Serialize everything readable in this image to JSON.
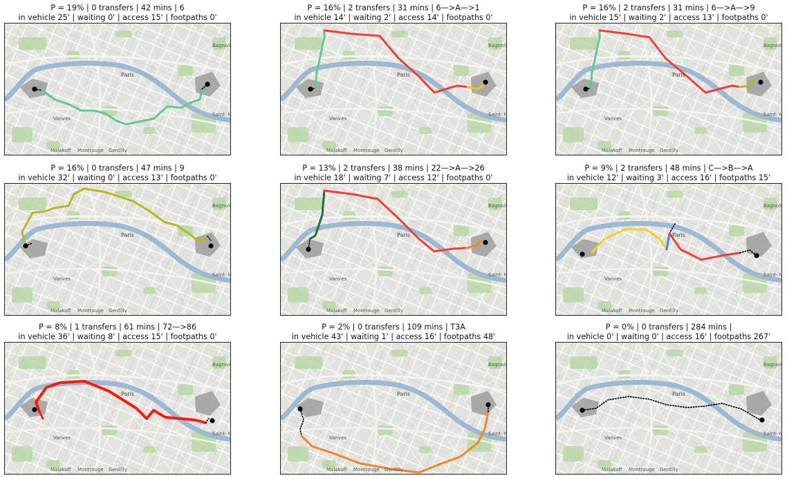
{
  "map_labels": {
    "paris": "Paris",
    "vanves": "Vanves",
    "bagnolet": "Bagnolet",
    "saint_mande": "Saint-\nMandé",
    "malakoff": "Malakoff",
    "montrouge": "Montrouge",
    "gentilly": "Gentilly"
  },
  "colors": {
    "green": "#5fc98f",
    "red": "#ee4035",
    "yellow_orange": "#f0c419",
    "olive": "#b9b81e",
    "dark_green": "#1b6e3c",
    "orange": "#f5832a",
    "blue": "#4a7fd4",
    "yellow": "#f3d21c",
    "bright_red": "#ff1a0a",
    "black": "#000000"
  },
  "panels": [
    {
      "line1": "P = 19% | 0 transfers  | 42 mins | 6",
      "line2": "in vehicle 25' |  waiting 0' | access 15' |  footpaths 0'",
      "segments": [
        {
          "type": "dotted",
          "points": [
            [
              43,
              95
            ],
            [
              54,
              97
            ]
          ]
        },
        {
          "type": "line",
          "color": "green",
          "width": 3,
          "points": [
            [
              54,
              97
            ],
            [
              72,
              110
            ],
            [
              95,
              118
            ],
            [
              110,
              126
            ],
            [
              128,
              126
            ],
            [
              145,
              130
            ],
            [
              160,
              140
            ],
            [
              175,
              146
            ],
            [
              195,
              142
            ],
            [
              215,
              138
            ],
            [
              235,
              120
            ],
            [
              255,
              122
            ],
            [
              270,
              114
            ],
            [
              282,
              110
            ],
            [
              285,
              95
            ]
          ]
        },
        {
          "type": "dotted",
          "points": [
            [
              285,
              95
            ],
            [
              293,
              88
            ]
          ]
        }
      ],
      "origin": [
        43,
        95
      ],
      "dest": [
        293,
        88
      ]
    },
    {
      "line1": "P = 16% | 2 transfers  | 31 mins | 6—>A—>1",
      "line2": "in vehicle 14' |  waiting 2' | access 14' |  footpaths 0'",
      "segments": [
        {
          "type": "dotted",
          "points": [
            [
              43,
              95
            ],
            [
              50,
              94
            ]
          ]
        },
        {
          "type": "line",
          "color": "green",
          "width": 3,
          "points": [
            [
              50,
              94
            ],
            [
              52,
              70
            ],
            [
              57,
              48
            ],
            [
              63,
              20
            ],
            [
              63,
              10
            ]
          ]
        },
        {
          "type": "line",
          "color": "red",
          "width": 3,
          "points": [
            [
              63,
              10
            ],
            [
              103,
              15
            ],
            [
              143,
              18
            ],
            [
              170,
              50
            ],
            [
              200,
              77
            ],
            [
              222,
              100
            ],
            [
              255,
              90
            ],
            [
              270,
              92
            ]
          ]
        },
        {
          "type": "line",
          "color": "yellow_orange",
          "width": 3,
          "points": [
            [
              270,
              92
            ],
            [
              285,
              95
            ],
            [
              293,
              89
            ]
          ]
        }
      ],
      "origin": [
        43,
        95
      ],
      "dest": [
        296,
        85
      ]
    },
    {
      "line1": "P = 16% | 2 transfers  | 31 mins | 6—>A—>9",
      "line2": "in vehicle 15' |  waiting 2' | access 13' |  footpaths 0'",
      "segments": [
        {
          "type": "dotted",
          "points": [
            [
              43,
              95
            ],
            [
              50,
              94
            ]
          ]
        },
        {
          "type": "line",
          "color": "green",
          "width": 3,
          "points": [
            [
              50,
              94
            ],
            [
              52,
              70
            ],
            [
              57,
              48
            ],
            [
              63,
              20
            ],
            [
              63,
              10
            ]
          ]
        },
        {
          "type": "line",
          "color": "red",
          "width": 3,
          "points": [
            [
              63,
              10
            ],
            [
              103,
              15
            ],
            [
              135,
              20
            ],
            [
              158,
              50
            ],
            [
              190,
              77
            ],
            [
              216,
              100
            ],
            [
              255,
              90
            ],
            [
              265,
              92
            ]
          ]
        },
        {
          "type": "line",
          "color": "olive",
          "width": 3,
          "points": [
            [
              265,
              92
            ],
            [
              280,
              90
            ],
            [
              290,
              80
            ]
          ]
        }
      ],
      "origin": [
        43,
        95
      ],
      "dest": [
        296,
        85
      ]
    },
    {
      "line1": "P = 16% | 0 transfers  | 47 mins | 9",
      "line2": "in vehicle 32' |  waiting 0' | access 13' |  footpaths 0'",
      "segments": [
        {
          "type": "dotted",
          "points": [
            [
              30,
              90
            ],
            [
              40,
              86
            ]
          ]
        },
        {
          "type": "line",
          "color": "olive",
          "width": 3,
          "points": [
            [
              30,
              90
            ],
            [
              25,
              70
            ],
            [
              40,
              42
            ],
            [
              58,
              40
            ],
            [
              72,
              35
            ],
            [
              92,
              32
            ],
            [
              100,
              15
            ],
            [
              115,
              7
            ],
            [
              145,
              12
            ],
            [
              185,
              25
            ],
            [
              210,
              40
            ],
            [
              230,
              55
            ],
            [
              248,
              60
            ],
            [
              270,
              75
            ],
            [
              278,
              82
            ]
          ]
        },
        {
          "type": "line",
          "color": "olive",
          "width": 3,
          "points": [
            [
              278,
              82
            ],
            [
              288,
              82
            ],
            [
              293,
              76
            ]
          ]
        },
        {
          "type": "dotted",
          "points": [
            [
              293,
              76
            ],
            [
              298,
              82
            ]
          ]
        }
      ],
      "origin": [
        30,
        90
      ],
      "dest": [
        298,
        90
      ]
    },
    {
      "line1": "P = 13% | 2 transfers  | 38 mins | 22—>A—>26",
      "line2": "in vehicle 18' |  waiting 7' | access 12' |  footpaths 0'",
      "segments": [
        {
          "type": "dotted",
          "points": [
            [
              40,
              95
            ],
            [
              42,
              80
            ]
          ]
        },
        {
          "type": "line",
          "color": "dark_green",
          "width": 3,
          "points": [
            [
              42,
              80
            ],
            [
              50,
              75
            ],
            [
              60,
              45
            ],
            [
              63,
              10
            ]
          ]
        },
        {
          "type": "line",
          "color": "red",
          "width": 3,
          "points": [
            [
              63,
              10
            ],
            [
              103,
              15
            ],
            [
              140,
              22
            ],
            [
              170,
              50
            ],
            [
              200,
              80
            ],
            [
              222,
              98
            ],
            [
              250,
              94
            ],
            [
              268,
              93
            ]
          ]
        },
        {
          "type": "line",
          "color": "orange",
          "width": 3,
          "points": [
            [
              268,
              93
            ],
            [
              282,
              90
            ],
            [
              290,
              82
            ]
          ]
        }
      ],
      "origin": [
        40,
        95
      ],
      "dest": [
        296,
        85
      ]
    },
    {
      "line1": "P = 9% | 2 transfers  | 48 mins | C—>B—>A",
      "line2": "in vehicle 12' |  waiting 3' | access 16' |  footpaths 15'",
      "segments": [
        {
          "type": "line",
          "color": "yellow",
          "width": 3,
          "points": [
            [
              52,
              99
            ],
            [
              70,
              80
            ],
            [
              100,
              66
            ],
            [
              130,
              66
            ],
            [
              150,
              80
            ],
            [
              160,
              95
            ]
          ]
        },
        {
          "type": "line",
          "color": "blue",
          "width": 3,
          "points": [
            [
              160,
              95
            ],
            [
              164,
              72
            ]
          ]
        },
        {
          "type": "dotted",
          "points": [
            [
              164,
              72
            ],
            [
              172,
              58
            ]
          ]
        },
        {
          "type": "line",
          "color": "red",
          "width": 3,
          "points": [
            [
              164,
              72
            ],
            [
              180,
              95
            ],
            [
              210,
              110
            ],
            [
              240,
              104
            ],
            [
              266,
              100
            ]
          ]
        },
        {
          "type": "dotted",
          "points": [
            [
              266,
              100
            ],
            [
              280,
              96
            ],
            [
              290,
              104
            ]
          ]
        }
      ],
      "origin": [
        38,
        102
      ],
      "dest": [
        290,
        104
      ]
    },
    {
      "line1": "P = 8% | 1 transfers  | 61 mins | 72—>86",
      "line2": "in vehicle 36' |  waiting 8' | access 15' |  footpaths 0'",
      "segments": [
        {
          "type": "line",
          "color": "bright_red",
          "width": 4,
          "points": [
            [
              50,
              100
            ],
            [
              45,
              86
            ],
            [
              60,
              65
            ],
            [
              80,
              58
            ],
            [
              115,
              56
            ],
            [
              150,
              70
            ],
            [
              190,
              95
            ],
            [
              205,
              110
            ],
            [
              215,
              98
            ],
            [
              232,
              108
            ],
            [
              275,
              112
            ],
            [
              290,
              116
            ]
          ]
        },
        {
          "type": "line",
          "color": "bright_red",
          "width": 3,
          "points": [
            [
              50,
              100
            ],
            [
              55,
              110
            ]
          ]
        },
        {
          "type": "dotted",
          "points": [
            [
              290,
              116
            ],
            [
              295,
              110
            ]
          ]
        }
      ],
      "origin": [
        43,
        97
      ],
      "dest": [
        300,
        113
      ]
    },
    {
      "line1": "P = 2% | 0 transfers  | 109 mins | T3A",
      "line2": "in vehicle 43' |  waiting 1' | access 16' |  footpaths 48'",
      "segments": [
        {
          "type": "dotted",
          "points": [
            [
              28,
              96
            ],
            [
              33,
              112
            ],
            [
              28,
              125
            ],
            [
              30,
              135
            ]
          ]
        },
        {
          "type": "line",
          "color": "orange",
          "width": 3,
          "points": [
            [
              30,
              135
            ],
            [
              45,
              150
            ],
            [
              75,
              160
            ],
            [
              115,
              175
            ],
            [
              160,
              183
            ],
            [
              200,
              188
            ],
            [
              230,
              176
            ],
            [
              260,
              165
            ],
            [
              285,
              145
            ],
            [
              295,
              125
            ],
            [
              300,
              100
            ]
          ]
        },
        {
          "type": "dotted",
          "points": [
            [
              300,
              100
            ],
            [
              300,
              90
            ]
          ]
        }
      ],
      "origin": [
        28,
        96
      ],
      "dest": [
        300,
        90
      ]
    },
    {
      "line1": "P = 0% | 0 transfers  | 284 mins |",
      "line2": "in vehicle 0' |  waiting 0' | access 16' |  footpaths 267'",
      "segments": [
        {
          "type": "dotted",
          "points": [
            [
              38,
              98
            ],
            [
              58,
              95
            ],
            [
              75,
              83
            ],
            [
              105,
              78
            ],
            [
              135,
              82
            ],
            [
              160,
              90
            ],
            [
              190,
              94
            ],
            [
              215,
              92
            ],
            [
              240,
              88
            ],
            [
              268,
              96
            ],
            [
              285,
              106
            ],
            [
              295,
              112
            ]
          ]
        }
      ],
      "origin": [
        38,
        98
      ],
      "dest": [
        298,
        112
      ]
    }
  ]
}
